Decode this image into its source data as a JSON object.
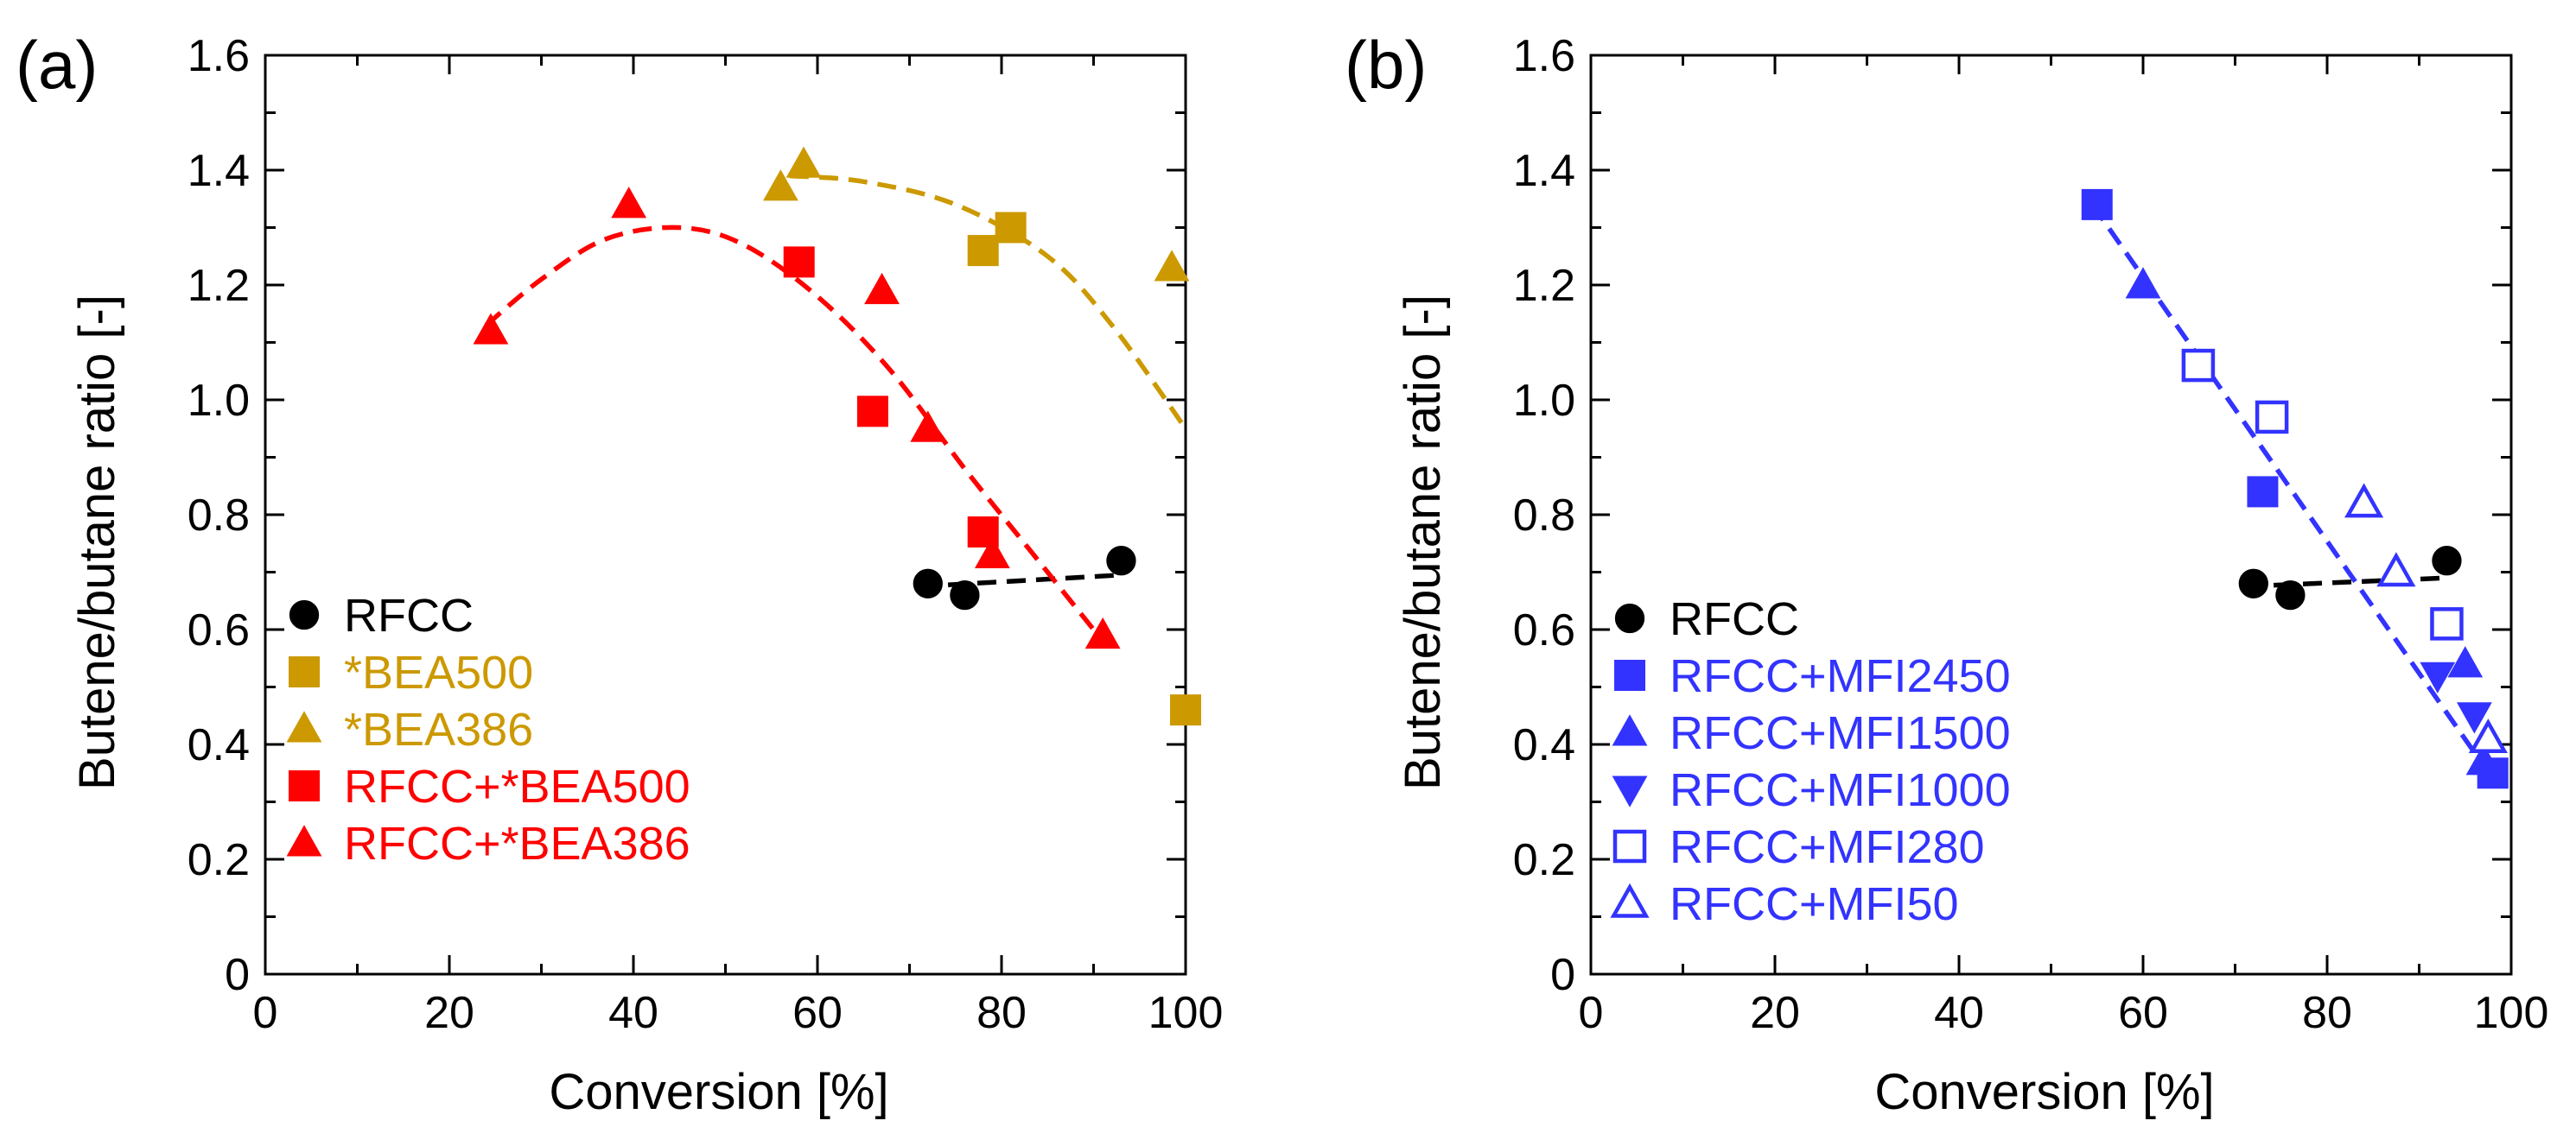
{
  "chart_data": [
    {
      "type": "scatter",
      "panel_label": "(a)",
      "xlabel": "Conversion [%]",
      "ylabel": "Butene/butane ratio [-]",
      "xlim": [
        0,
        100
      ],
      "ylim": [
        0,
        1.6
      ],
      "xticks": [
        0,
        20,
        40,
        60,
        80,
        100
      ],
      "xtick_labels": [
        "0",
        "20",
        "40",
        "60",
        "80",
        "100"
      ],
      "yticks": [
        0,
        0.2,
        0.4,
        0.6,
        0.8,
        1.0,
        1.2,
        1.4,
        1.6
      ],
      "ytick_labels": [
        "0",
        "0.2",
        "0.4",
        "0.6",
        "0.8",
        "1.0",
        "1.2",
        "1.4",
        "1.6"
      ],
      "grid": false,
      "legend_position": "lower-left",
      "series": [
        {
          "name": "RFCC",
          "marker": "circle",
          "filled": true,
          "color": "#000000",
          "points": [
            [
              72,
              0.68
            ],
            [
              76,
              0.66
            ],
            [
              93,
              0.72
            ]
          ]
        },
        {
          "name": "*BEA500",
          "marker": "square",
          "filled": true,
          "color": "#cc9900",
          "points": [
            [
              78,
              1.26
            ],
            [
              81,
              1.3
            ],
            [
              100,
              0.46
            ]
          ]
        },
        {
          "name": "*BEA386",
          "marker": "triangle-up",
          "filled": true,
          "color": "#cc9900",
          "points": [
            [
              56,
              1.37
            ],
            [
              58.5,
              1.41
            ],
            [
              98.5,
              1.23
            ]
          ]
        },
        {
          "name": "RFCC+*BEA500",
          "marker": "square",
          "filled": true,
          "color": "#ff0000",
          "points": [
            [
              58,
              1.24
            ],
            [
              66,
              0.98
            ],
            [
              78,
              0.77
            ]
          ]
        },
        {
          "name": "RFCC+*BEA386",
          "marker": "triangle-up",
          "filled": true,
          "color": "#ff0000",
          "points": [
            [
              24.5,
              1.12
            ],
            [
              39.5,
              1.34
            ],
            [
              67,
              1.19
            ],
            [
              72,
              0.95
            ],
            [
              79,
              0.73
            ],
            [
              91,
              0.59
            ]
          ]
        }
      ],
      "trend_lines": [
        {
          "series": "RFCC",
          "color": "#000000",
          "points": [
            [
              71,
              0.675
            ],
            [
              93,
              0.695
            ]
          ]
        },
        {
          "series": "*BEA",
          "color": "#cc9900",
          "points": [
            [
              57,
              1.39
            ],
            [
              65,
              1.38
            ],
            [
              75,
              1.34
            ],
            [
              85,
              1.25
            ],
            [
              92,
              1.13
            ],
            [
              100,
              0.95
            ]
          ]
        },
        {
          "series": "RFCC+*BEA",
          "color": "#ff0000",
          "points": [
            [
              24,
              1.13
            ],
            [
              30,
              1.21
            ],
            [
              37,
              1.28
            ],
            [
              45,
              1.3
            ],
            [
              52,
              1.27
            ],
            [
              60,
              1.18
            ],
            [
              68,
              1.05
            ],
            [
              76,
              0.88
            ],
            [
              83,
              0.74
            ],
            [
              91,
              0.58
            ]
          ]
        }
      ]
    },
    {
      "type": "scatter",
      "panel_label": "(b)",
      "xlabel": "Conversion [%]",
      "ylabel": "Butene/butane ratio [-]",
      "xlim": [
        0,
        100
      ],
      "ylim": [
        0,
        1.6
      ],
      "xticks": [
        0,
        20,
        40,
        60,
        80,
        100
      ],
      "xtick_labels": [
        "0",
        "20",
        "40",
        "60",
        "80",
        "100"
      ],
      "yticks": [
        0,
        0.2,
        0.4,
        0.6,
        0.8,
        1.0,
        1.2,
        1.4,
        1.6
      ],
      "ytick_labels": [
        "0",
        "0.2",
        "0.4",
        "0.6",
        "0.8",
        "1.0",
        "1.2",
        "1.4",
        "1.6"
      ],
      "grid": false,
      "legend_position": "lower-left",
      "series": [
        {
          "name": "RFCC",
          "marker": "circle",
          "filled": true,
          "color": "#000000",
          "points": [
            [
              72,
              0.68
            ],
            [
              76,
              0.66
            ],
            [
              93,
              0.72
            ]
          ]
        },
        {
          "name": "RFCC+MFI2450",
          "marker": "square",
          "filled": true,
          "color": "#3333ff",
          "points": [
            [
              55,
              1.34
            ],
            [
              73,
              0.84
            ],
            [
              98,
              0.35
            ]
          ]
        },
        {
          "name": "RFCC+MFI1500",
          "marker": "triangle-up",
          "filled": true,
          "color": "#3333ff",
          "points": [
            [
              60,
              1.2
            ],
            [
              95,
              0.54
            ],
            [
              97,
              0.37
            ]
          ]
        },
        {
          "name": "RFCC+MFI1000",
          "marker": "triangle-down",
          "filled": true,
          "color": "#3333ff",
          "points": [
            [
              92,
              0.52
            ],
            [
              96,
              0.45
            ]
          ]
        },
        {
          "name": "RFCC+MFI280",
          "marker": "square",
          "filled": false,
          "color": "#3333ff",
          "points": [
            [
              66,
              1.06
            ],
            [
              74,
              0.97
            ],
            [
              93,
              0.61
            ]
          ]
        },
        {
          "name": "RFCC+MFI50",
          "marker": "triangle-up",
          "filled": false,
          "color": "#3333ff",
          "points": [
            [
              84,
              0.82
            ],
            [
              87.5,
              0.7
            ],
            [
              97.5,
              0.41
            ]
          ]
        }
      ],
      "trend_lines": [
        {
          "series": "RFCC",
          "color": "#000000",
          "points": [
            [
              71,
              0.675
            ],
            [
              93,
              0.69
            ]
          ]
        },
        {
          "series": "RFCC+MFI",
          "color": "#3333ff",
          "points": [
            [
              54.5,
              1.34
            ],
            [
              98,
              0.34
            ]
          ]
        }
      ]
    }
  ]
}
